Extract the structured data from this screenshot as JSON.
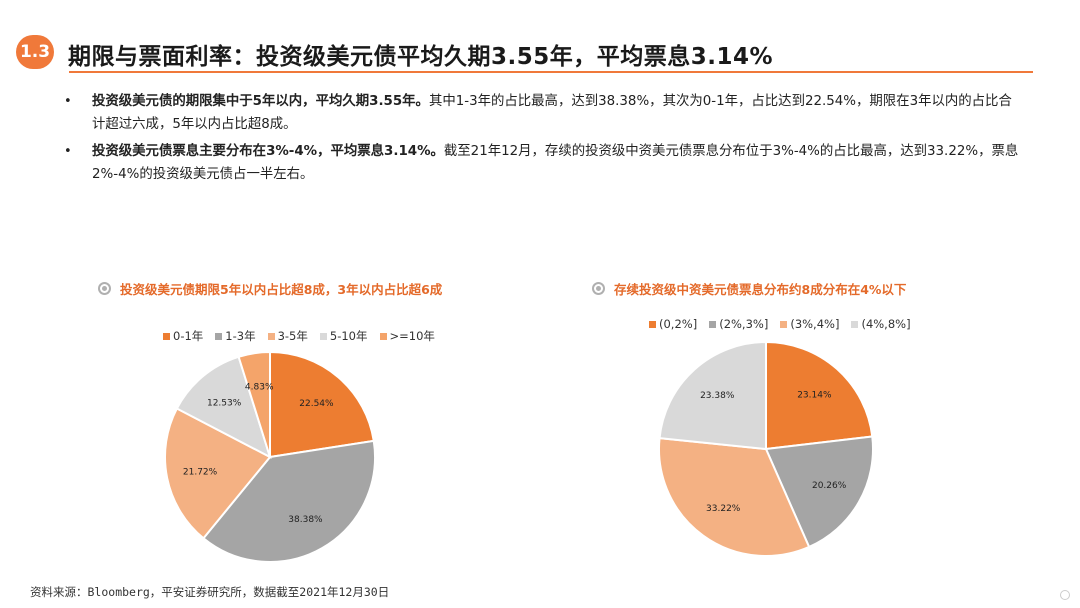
{
  "header": {
    "section_number": "1.3",
    "title": "期限与票面利率：投资级美元债平均久期3.55年，平均票息3.14%"
  },
  "bullets": [
    {
      "bold": "投资级美元债的期限集中于5年以内，平均久期3.55年。",
      "text": "其中1-3年的占比最高，达到38.38%，其次为0-1年，占比达到22.54%，期限在3年以内的占比合计超过六成，5年以内占比超8成。"
    },
    {
      "bold": "投资级美元债票息主要分布在3%-4%，平均票息3.14%。",
      "text": "截至21年12月，存续的投资级中资美元债票息分布位于3%-4%的占比最高，达到33.22%，票息2%-4%的投资级美元债占一半左右。"
    }
  ],
  "chart_data": [
    {
      "type": "pie",
      "title": "投资级美元债期限5年以内占比超8成，3年以内占比超6成",
      "categories": [
        "0-1年",
        "1-3年",
        "3-5年",
        "5-10年",
        ">=10年"
      ],
      "values": [
        22.54,
        38.38,
        21.72,
        12.53,
        4.83
      ],
      "value_labels": [
        "22.54%",
        "38.38%",
        "21.72%",
        "12.53%",
        "4.83%"
      ],
      "colors": [
        "#ed7d31",
        "#a5a5a5",
        "#f4b183",
        "#d9d9d9",
        "#f4a46a"
      ],
      "legend_position": "top"
    },
    {
      "type": "pie",
      "title": "存续投资级中资美元债票息分布约8成分布在4%以下",
      "categories": [
        "(0,2%]",
        "(2%,3%]",
        "(3%,4%]",
        "(4%,8%]"
      ],
      "values": [
        23.14,
        20.26,
        33.22,
        23.38
      ],
      "value_labels": [
        "23.14%",
        "20.26%",
        "33.22%",
        "23.38%"
      ],
      "colors": [
        "#ed7d31",
        "#a5a5a5",
        "#f4b183",
        "#d9d9d9"
      ],
      "legend_position": "top"
    }
  ],
  "footer": {
    "source": "资料来源：Bloomberg，平安证券研究所，数据截至2021年12月30日"
  }
}
